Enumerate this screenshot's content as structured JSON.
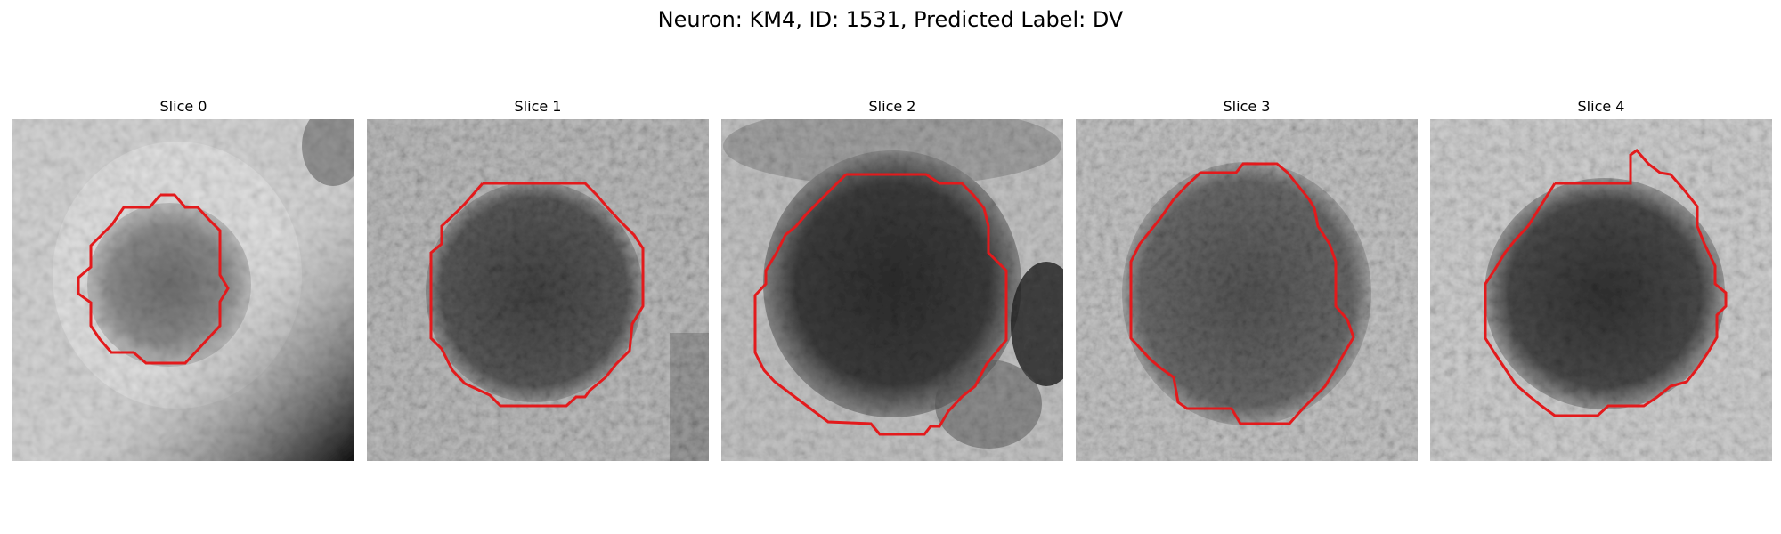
{
  "figure": {
    "title": "Neuron: KM4, ID: 1531, Predicted Label: DV"
  },
  "panels": [
    {
      "title": "Slice 0"
    },
    {
      "title": "Slice 1"
    },
    {
      "title": "Slice 2"
    },
    {
      "title": "Slice 3"
    },
    {
      "title": "Slice 4"
    }
  ],
  "colors": {
    "contour": "#e31a1c",
    "background": "#ffffff"
  }
}
